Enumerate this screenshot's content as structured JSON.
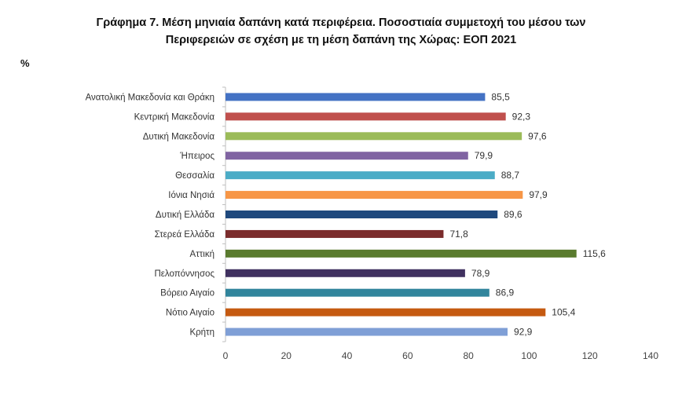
{
  "title_line1": "Γράφημα 7. Μέση  μηνιαία δαπάνη κατά  περιφέρεια. Ποσοστιαία συμμετοχή του μέσου  των",
  "title_line2": "Περιφερειών σε σχέση με τη μέση δαπάνη της Χώρας: ΕΟΠ 2021",
  "unit_label": "%",
  "chart_data": {
    "type": "bar",
    "orientation": "horizontal",
    "title": "Γράφημα 7. Μέση μηνιαία δαπάνη κατά περιφέρεια. Ποσοστιαία συμμετοχή του μέσου των Περιφερειών σε σχέση με τη μέση δαπάνη της Χώρας: ΕΟΠ 2021",
    "ylabel": "%",
    "xlim": [
      0,
      140
    ],
    "xticks": [
      0,
      20,
      40,
      60,
      80,
      100,
      120,
      140
    ],
    "grid": false,
    "categories": [
      "Ανατολική Μακεδονία και Θράκη",
      "Κεντρική Μακεδονία",
      "Δυτική Μακεδονία",
      "Ήπειρος",
      "Θεσσαλία",
      "Ιόνια Νησιά",
      "Δυτική Ελλάδα",
      "Στερεά Ελλάδα",
      "Αττική",
      "Πελοπόννησος",
      "Βόρειο Αιγαίο",
      "Νότιο Αιγαίο",
      "Κρήτη"
    ],
    "values": [
      85.5,
      92.3,
      97.6,
      79.9,
      88.7,
      97.9,
      89.6,
      71.8,
      115.6,
      78.9,
      86.9,
      105.4,
      92.9
    ],
    "value_labels": [
      "85,5",
      "92,3",
      "97,6",
      "79,9",
      "88,7",
      "97,9",
      "89,6",
      "71,8",
      "115,6",
      "78,9",
      "86,9",
      "105,4",
      "92,9"
    ],
    "colors": [
      "#4472c4",
      "#c0504d",
      "#9bbb59",
      "#8064a2",
      "#4bacc6",
      "#f79646",
      "#1f497d",
      "#7b2c2c",
      "#5a7b2e",
      "#403160",
      "#31859c",
      "#c55a11",
      "#7f9fd6"
    ]
  }
}
